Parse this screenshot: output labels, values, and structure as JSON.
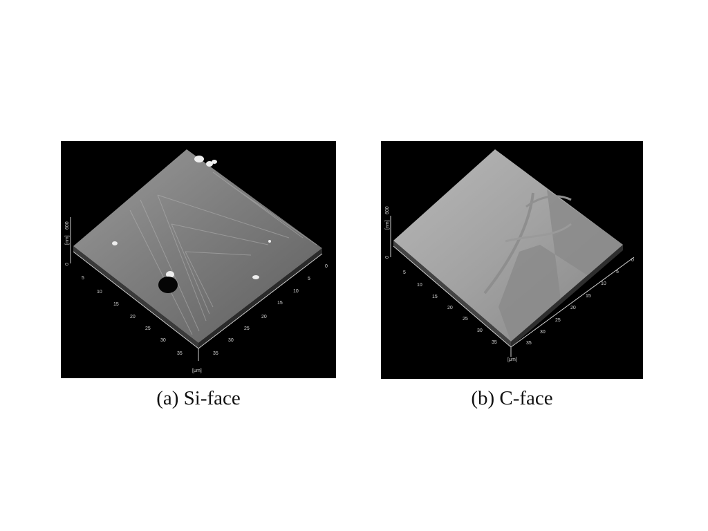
{
  "panels": [
    {
      "caption": "(a) Si-face",
      "z_unit": "[nm]",
      "z_tick_zero": "0",
      "z_tick_max": "600",
      "xy_unit": "[μm]",
      "left_axis_ticks": [
        "5",
        "10",
        "15",
        "20",
        "25",
        "30",
        "35"
      ],
      "right_axis_ticks": [
        "0",
        "5",
        "10",
        "15",
        "20",
        "25",
        "30",
        "35"
      ]
    },
    {
      "caption": "(b) C-face",
      "z_unit": "[nm]",
      "z_tick_zero": "0",
      "z_tick_max": "600",
      "xy_unit": "[μm]",
      "left_axis_ticks": [
        "5",
        "10",
        "15",
        "20",
        "25",
        "30",
        "35"
      ],
      "right_axis_ticks": [
        "0",
        "5",
        "10",
        "15",
        "20",
        "25",
        "30",
        "35"
      ]
    }
  ],
  "colors": {
    "background": "#000000",
    "page": "#ffffff",
    "caption": "#111111"
  }
}
